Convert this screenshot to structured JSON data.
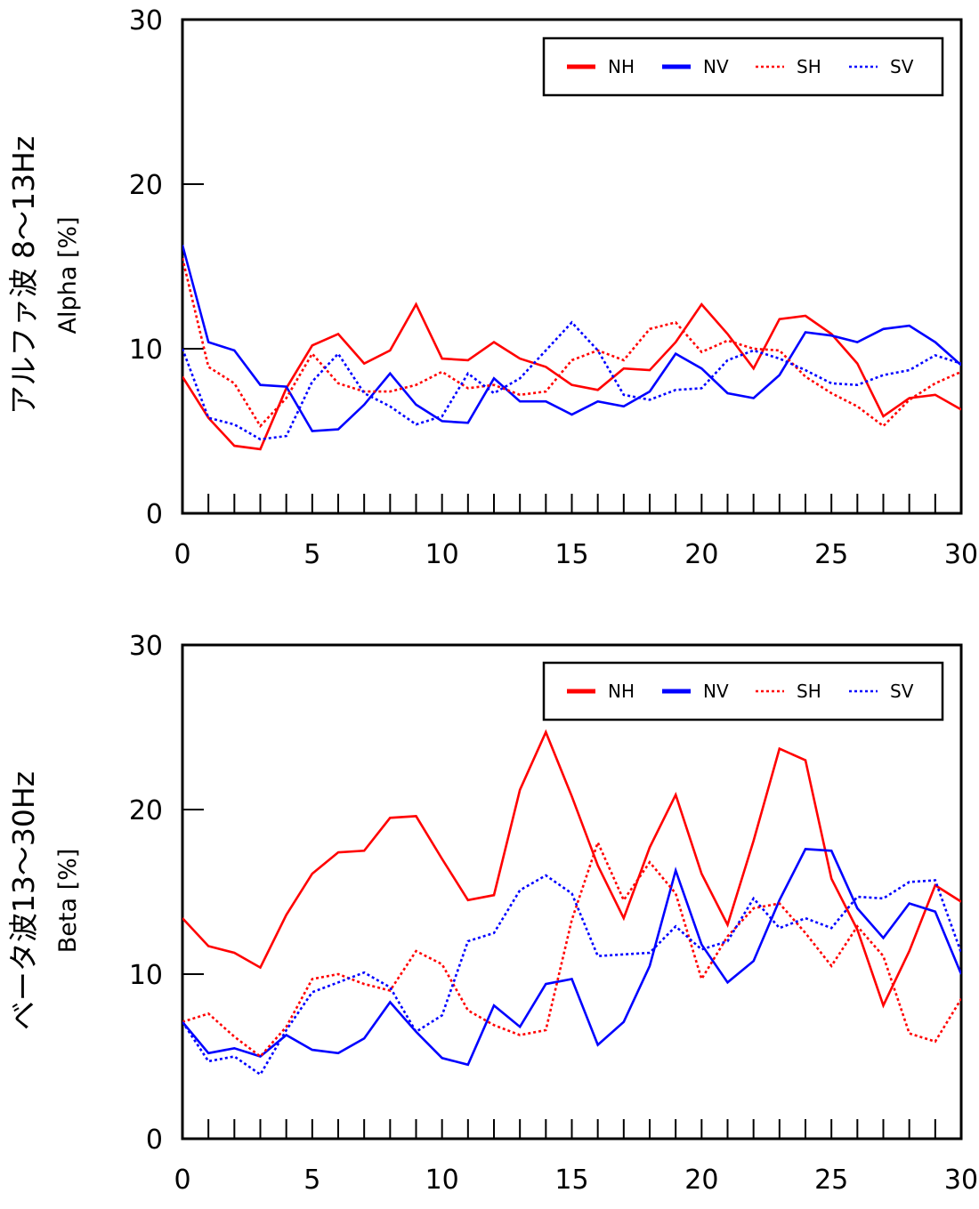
{
  "chart_data": [
    {
      "type": "line",
      "ylabel_main": "アルファ波 8〜13Hz",
      "ylabel_sub": "Alpha [%]",
      "xlim": [
        0,
        30
      ],
      "ylim": [
        0,
        30
      ],
      "xticks": [
        0,
        5,
        10,
        15,
        20,
        25,
        30
      ],
      "yticks": [
        0,
        10,
        20,
        30
      ],
      "grid": false,
      "legend_position": "top-right",
      "x": [
        0,
        1,
        2,
        3,
        4,
        5,
        6,
        7,
        8,
        9,
        10,
        11,
        12,
        13,
        14,
        15,
        16,
        17,
        18,
        19,
        20,
        21,
        22,
        23,
        24,
        25,
        26,
        27,
        28,
        29,
        30
      ],
      "series": [
        {
          "name": "NH",
          "color": "#ff0000",
          "style": "solid",
          "values": [
            8.3,
            5.8,
            4.1,
            3.9,
            7.6,
            10.2,
            10.9,
            9.1,
            9.9,
            12.7,
            9.4,
            9.3,
            10.4,
            9.4,
            8.9,
            7.8,
            7.5,
            8.8,
            8.7,
            10.4,
            12.7,
            10.9,
            8.8,
            11.8,
            12.0,
            10.9,
            9.1,
            5.9,
            7.0,
            7.2,
            6.3
          ]
        },
        {
          "name": "NV",
          "color": "#0000ff",
          "style": "solid",
          "values": [
            16.3,
            10.4,
            9.9,
            7.8,
            7.7,
            5.0,
            5.1,
            6.6,
            8.5,
            6.6,
            5.6,
            5.5,
            8.2,
            6.8,
            6.8,
            6.0,
            6.8,
            6.5,
            7.4,
            9.7,
            8.8,
            7.3,
            7.0,
            8.4,
            11.0,
            10.8,
            10.4,
            11.2,
            11.4,
            10.4,
            9.0
          ]
        },
        {
          "name": "SH",
          "color": "#ff0000",
          "style": "dotted",
          "values": [
            15.5,
            8.9,
            7.9,
            5.3,
            7.0,
            9.7,
            7.9,
            7.4,
            7.4,
            7.8,
            8.6,
            7.6,
            7.8,
            7.2,
            7.4,
            9.3,
            9.9,
            9.3,
            11.2,
            11.6,
            9.8,
            10.5,
            10.0,
            9.9,
            8.3,
            7.3,
            6.5,
            5.3,
            6.9,
            7.9,
            8.6
          ]
        },
        {
          "name": "SV",
          "color": "#0000ff",
          "style": "dotted",
          "values": [
            10.0,
            5.8,
            5.4,
            4.5,
            4.7,
            8.0,
            9.7,
            7.3,
            6.5,
            5.4,
            5.9,
            8.5,
            7.3,
            8.2,
            9.9,
            11.6,
            9.9,
            7.2,
            6.9,
            7.5,
            7.6,
            9.3,
            9.9,
            9.4,
            8.7,
            7.9,
            7.8,
            8.4,
            8.7,
            9.6,
            9.1
          ]
        }
      ]
    },
    {
      "type": "line",
      "ylabel_main": "ベータ波13〜30Hz",
      "ylabel_sub": "Beta [%]",
      "xlim": [
        0,
        30
      ],
      "ylim": [
        0,
        30
      ],
      "xticks": [
        0,
        5,
        10,
        15,
        20,
        25,
        30
      ],
      "yticks": [
        0,
        10,
        20,
        30
      ],
      "grid": false,
      "legend_position": "top-right",
      "x": [
        0,
        1,
        2,
        3,
        4,
        5,
        6,
        7,
        8,
        9,
        10,
        11,
        12,
        13,
        14,
        15,
        16,
        17,
        18,
        19,
        20,
        21,
        22,
        23,
        24,
        25,
        26,
        27,
        28,
        29,
        30
      ],
      "series": [
        {
          "name": "NH",
          "color": "#ff0000",
          "style": "solid",
          "values": [
            13.4,
            11.7,
            11.3,
            10.4,
            13.6,
            16.1,
            17.4,
            17.5,
            19.5,
            19.6,
            17.0,
            14.5,
            14.8,
            21.2,
            24.7,
            20.8,
            16.6,
            13.4,
            17.7,
            20.9,
            16.1,
            13.0,
            18.1,
            23.7,
            23.0,
            15.8,
            12.7,
            8.1,
            11.4,
            15.4,
            14.4
          ]
        },
        {
          "name": "NV",
          "color": "#0000ff",
          "style": "solid",
          "values": [
            7.1,
            5.2,
            5.5,
            5.0,
            6.3,
            5.4,
            5.2,
            6.1,
            8.3,
            6.5,
            4.9,
            4.5,
            8.1,
            6.8,
            9.4,
            9.7,
            5.7,
            7.1,
            10.5,
            16.3,
            11.8,
            9.5,
            10.8,
            14.5,
            17.6,
            17.5,
            14.0,
            12.2,
            14.3,
            13.8,
            10.0
          ]
        },
        {
          "name": "SH",
          "color": "#ff0000",
          "style": "dotted",
          "values": [
            7.1,
            7.6,
            6.2,
            5.0,
            6.8,
            9.7,
            10.0,
            9.4,
            9.0,
            11.4,
            10.6,
            7.8,
            6.9,
            6.3,
            6.6,
            13.3,
            18.0,
            14.5,
            16.8,
            14.9,
            9.7,
            12.3,
            14.0,
            14.3,
            12.5,
            10.5,
            12.9,
            11.1,
            6.4,
            5.9,
            8.5
          ]
        },
        {
          "name": "SV",
          "color": "#0000ff",
          "style": "dotted",
          "values": [
            7.1,
            4.7,
            5.0,
            3.9,
            6.6,
            8.9,
            9.5,
            10.1,
            9.2,
            6.5,
            7.5,
            12.0,
            12.5,
            15.1,
            16.0,
            14.9,
            11.1,
            11.2,
            11.3,
            12.9,
            11.5,
            12.0,
            14.6,
            12.8,
            13.4,
            12.8,
            14.7,
            14.6,
            15.6,
            15.7,
            11.3
          ]
        }
      ]
    }
  ]
}
